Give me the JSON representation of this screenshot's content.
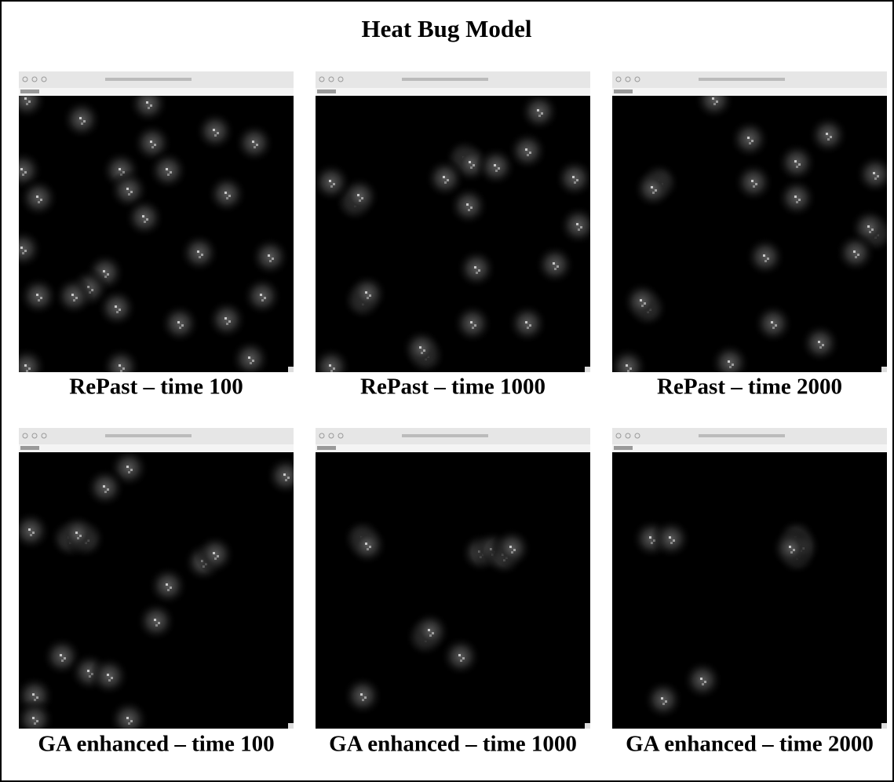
{
  "title": "Heat Bug Model",
  "panels": [
    {
      "caption": "RePast – time 100"
    },
    {
      "caption": "RePast – time 1000"
    },
    {
      "caption": "RePast – time 2000"
    },
    {
      "caption": "GA enhanced – time 100"
    },
    {
      "caption": "GA enhanced – time 1000"
    },
    {
      "caption": "GA enhanced – time 2000"
    }
  ]
}
